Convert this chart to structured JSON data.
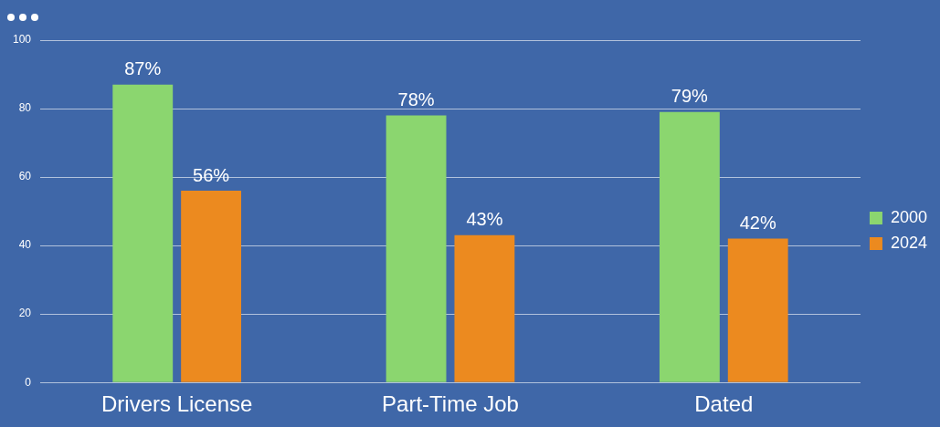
{
  "chart_data": {
    "type": "bar",
    "categories": [
      "Drivers License",
      "Part-Time Job",
      "Dated"
    ],
    "series": [
      {
        "name": "2000",
        "color": "#8bd66f",
        "values": [
          87,
          78,
          79
        ],
        "value_labels": [
          "87%",
          "78%",
          "79%"
        ]
      },
      {
        "name": "2024",
        "color": "#ec8a1f",
        "values": [
          56,
          43,
          42
        ],
        "value_labels": [
          "56%",
          "43%",
          "42%"
        ]
      }
    ],
    "ylim": [
      0,
      100
    ],
    "yticks": [
      0,
      20,
      40,
      60,
      80,
      100
    ],
    "grid": "y",
    "legend": "right"
  }
}
